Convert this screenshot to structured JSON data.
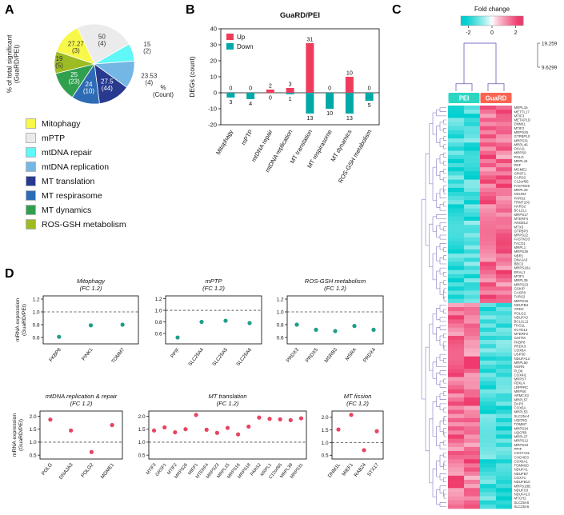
{
  "figure": {
    "panel_labels": {
      "a": "A",
      "b": "B",
      "c": "C",
      "d": "D"
    }
  },
  "colors": {
    "up_bar": "#ef3c5d",
    "down_bar": "#00a8a8",
    "dot_teal": "#1f9e88",
    "dot_red": "#e84360",
    "dendrogram": "#7e6fc0",
    "heat_low": "#00cfcf",
    "heat_high": "#ee3a6c",
    "pei_header": "#2bd7c3",
    "guard_header": "#fa6450"
  },
  "chart_data": [
    {
      "id": "pie",
      "type": "pie",
      "ylabel_lines": [
        "% of total significant",
        "(GuaRD/PEI)"
      ],
      "unit_note_lines": [
        "%",
        "(Count)"
      ],
      "slices": [
        {
          "category": "mPTP",
          "pct": 50,
          "count": 4,
          "label_lines": [
            "50",
            "(4)"
          ],
          "color": "#ebebeb",
          "text_color": "#333333",
          "label_r": 0.62
        },
        {
          "category": "mtDNA repair",
          "pct": 15,
          "count": 2,
          "label_lines": [
            "15",
            "(2)"
          ],
          "color": "#5ff7f7",
          "text_color": "#333333",
          "label_r": 1.38
        },
        {
          "category": "mtDNA replication",
          "pct": 23.53,
          "count": 4,
          "label_lines": [
            "23.53",
            "(4)"
          ],
          "color": "#74b6e4",
          "text_color": "#333333",
          "label_r": 1.42
        },
        {
          "category": "MT translation",
          "pct": 27.5,
          "count": 44,
          "label_lines": [
            "27.5",
            "(44)"
          ],
          "color": "#273a8f",
          "text_color": "#ffffff",
          "label_r": 0.62
        },
        {
          "category": "MT respirasome",
          "pct": 24,
          "count": 10,
          "label_lines": [
            "24",
            "(10)"
          ],
          "color": "#2d6cb5",
          "text_color": "#ffffff",
          "label_r": 0.62
        },
        {
          "category": "MT dynamics",
          "pct": 25,
          "count": 23,
          "label_lines": [
            "25",
            "(23)"
          ],
          "color": "#31a04e",
          "text_color": "#ffffff",
          "label_r": 0.62
        },
        {
          "category": "ROS-GSH metabolism",
          "pct": 19,
          "count": 5,
          "label_lines": [
            "19",
            "(5)"
          ],
          "color": "#9dbb22",
          "text_color": "#333333",
          "label_r": 0.88
        },
        {
          "category": "Mitophagy",
          "pct": 27.27,
          "count": 3,
          "label_lines": [
            "27.27",
            "(3)"
          ],
          "color": "#f8f84a",
          "text_color": "#333333",
          "label_r": 0.62
        }
      ],
      "legend": [
        {
          "label": "Mitophagy",
          "color": "#f8f84a"
        },
        {
          "label": "mPTP",
          "color": "#ebebeb"
        },
        {
          "label": "mtDNA repair",
          "color": "#5ff7f7"
        },
        {
          "label": "mtDNA replication",
          "color": "#74b6e4"
        },
        {
          "label": "MT translation",
          "color": "#273a8f"
        },
        {
          "label": "MT respirasome",
          "color": "#2d6cb5"
        },
        {
          "label": "MT dynamics",
          "color": "#31a04e"
        },
        {
          "label": "ROS-GSH metabolism",
          "color": "#9dbb22"
        }
      ]
    },
    {
      "id": "bar",
      "type": "bar",
      "title": "GuaRD/PEI",
      "ylabel": "DEGs (count)",
      "categories": [
        "Mitophagy",
        "mPTP",
        "mtDNA repair",
        "mtDNA replication",
        "MT translation",
        "MT respirasome",
        "MT dynamics",
        "ROS-GSH metabolism"
      ],
      "series": [
        {
          "name": "Up",
          "values": [
            0,
            0,
            2,
            3,
            31,
            0,
            10,
            0
          ]
        },
        {
          "name": "Down",
          "values": [
            3,
            4,
            0,
            1,
            13,
            10,
            13,
            5
          ]
        }
      ],
      "ylim": [
        -20,
        40
      ],
      "yticks": [
        -20,
        -10,
        0,
        10,
        20,
        30,
        40
      ]
    },
    {
      "id": "heatmap",
      "type": "heatmap",
      "colorbar_title": "Fold change",
      "colorbar_ticks": [
        "-2",
        "0",
        "2"
      ],
      "dendrogram_scale_labels": [
        "19.259",
        "9.6299"
      ],
      "dendrogram_scale_max": 19.259,
      "dendrogram_scale_mid": 9.6299,
      "groups": [
        {
          "name": "PEI",
          "columns": 2
        },
        {
          "name": "GuaRD",
          "columns": 2
        }
      ],
      "up_genes": [
        "MRPL15",
        "METTL17",
        "MTIF3",
        "METAP1D",
        "DNM1L",
        "MTIF2",
        "MRPS26",
        "GTPBP10",
        "MRPS31",
        "MRPL46",
        "OXA1L",
        "MRPS9",
        "POLG",
        "MRPL44",
        "PDF",
        "MGME1",
        "GRSF1",
        "CARS2",
        "C12orf65",
        "FASTKD5",
        "MRPL18",
        "NSUN4",
        "PARS2",
        "TRMT10C",
        "HARS2",
        "BCL2L1",
        "MRPS17",
        "MTERF4",
        "ANGEL2",
        "MTX3",
        "GTPBP3",
        "MRPS22",
        "FASTKD3",
        "TACO1",
        "MRPL1",
        "MRPS36",
        "NBR1",
        "DNAJA3",
        "BBC3",
        "MRPS18A",
        "ERAL1",
        "MTIF1",
        "MRPL39",
        "MRPS23",
        "GSKIP",
        "CASP8",
        "TARS2",
        "MRPS16"
      ],
      "down_genes": [
        "NDUFB4",
        "YRDC",
        "POLG2",
        "NDUFA3",
        "BCL2L11",
        "THG1L",
        "KCTD14",
        "MTERF2",
        "GHITM",
        "FKBP8",
        "PRDX3",
        "COX8A",
        "USP30",
        "NDUFA12",
        "MRPL50",
        "NGRN",
        "PLD6",
        "COX4I1",
        "MRPS7",
        "FBXL4",
        "LRPPRC",
        "MRPS6",
        "ARMCX3",
        "MRPL57",
        "DAP3",
        "COX5A",
        "MRPL53",
        "SLC25A4",
        "UQCRQ",
        "TOMM7",
        "MRPS34",
        "UQCRB",
        "MRPL27",
        "MRPS12",
        "MRPS33",
        "PPIF",
        "COX7A2L",
        "CHCHD3",
        "COX6A1",
        "TOMM20",
        "NDUFA1",
        "NDUFB7",
        "COX7C",
        "NDUFB10",
        "MRPS18B",
        "NDUFS3",
        "NDUFA13",
        "MTCH2",
        "SLC25A5",
        "SLC25A6"
      ]
    },
    {
      "id": "dot-mitophagy",
      "type": "scatter",
      "title_lines": [
        "Mitophagy",
        "(FC 1.2)"
      ],
      "ylabel_lines": [
        "mRNA expression",
        "(GuaRD/PEI)"
      ],
      "genes": [
        "FKBP8",
        "PINK1",
        "TOMM7"
      ],
      "values": [
        0.61,
        0.79,
        0.8
      ],
      "yticks": [
        "0.6",
        "0.8",
        "1.0",
        "1.2"
      ],
      "ylim": [
        0.5,
        1.25
      ],
      "ref_line": 1.0
    },
    {
      "id": "dot-mptp",
      "type": "scatter",
      "title_lines": [
        "mPTP",
        "(FC 1.2)"
      ],
      "genes": [
        "PPIF",
        "SLC25A4",
        "SLC25A5",
        "SLC25A6"
      ],
      "values": [
        0.53,
        0.8,
        0.82,
        0.78
      ],
      "yticks": [
        "0.6",
        "0.8",
        "1.0",
        "1.2"
      ],
      "ylim": [
        0.42,
        1.25
      ],
      "ref_line": 1.0
    },
    {
      "id": "dot-rosgsh",
      "type": "scatter",
      "title_lines": [
        "ROS-GSH metabolism",
        "(FC 1.2)"
      ],
      "genes": [
        "PRDX3",
        "PRDX5",
        "MSRB3",
        "MSRA",
        "PRDX4"
      ],
      "values": [
        0.8,
        0.72,
        0.7,
        0.78,
        0.72
      ],
      "yticks": [
        "0.6",
        "0.8",
        "1.0",
        "1.2"
      ],
      "ylim": [
        0.5,
        1.25
      ],
      "ref_line": 1.0
    },
    {
      "id": "dot-mtdna",
      "type": "scatter",
      "title_lines": [
        "mtDNA replication & repair",
        "(FC 1.2)"
      ],
      "ylabel_lines": [
        "mRNA expression",
        "(GuaRD/PEI)"
      ],
      "genes": [
        "POLG",
        "DNAJA3",
        "POLG2",
        "MGME1"
      ],
      "values": [
        1.87,
        1.45,
        0.62,
        1.66
      ],
      "yticks": [
        "0.5",
        "1.0",
        "1.5",
        "2.0"
      ],
      "ylim": [
        0.35,
        2.2
      ],
      "ref_line": 1.0
    },
    {
      "id": "dot-translation",
      "type": "scatter",
      "title_lines": [
        "MT translation",
        "(FC 1.2)"
      ],
      "genes": [
        "MTIF3",
        "GRSF1",
        "MTIF2",
        "MRPS26",
        "MIEF1",
        "MTERF4",
        "MRPS23",
        "MRPL15",
        "MRPS16",
        "MRPS18",
        "PARS2",
        "MRPL1",
        "C12orf65",
        "MRPL39",
        "MRPS31"
      ],
      "values": [
        1.45,
        1.57,
        1.38,
        1.5,
        2.05,
        1.48,
        1.36,
        1.55,
        1.3,
        1.6,
        1.95,
        1.9,
        1.88,
        1.85,
        1.92
      ],
      "yticks": [
        "0.5",
        "1.0",
        "1.5",
        "2.0"
      ],
      "ylim": [
        0.35,
        2.2
      ],
      "ref_line": 1.0
    },
    {
      "id": "dot-fission",
      "type": "scatter",
      "title_lines": [
        "MT fission",
        "(FC 1.2)"
      ],
      "genes": [
        "DNM1L",
        "MIEF1",
        "RAB24",
        "STX17"
      ],
      "values": [
        1.52,
        2.1,
        0.7,
        1.45
      ],
      "yticks": [
        "0.5",
        "1.0",
        "1.5",
        "2.0"
      ],
      "ylim": [
        0.35,
        2.25
      ],
      "ref_line": 1.0
    }
  ]
}
